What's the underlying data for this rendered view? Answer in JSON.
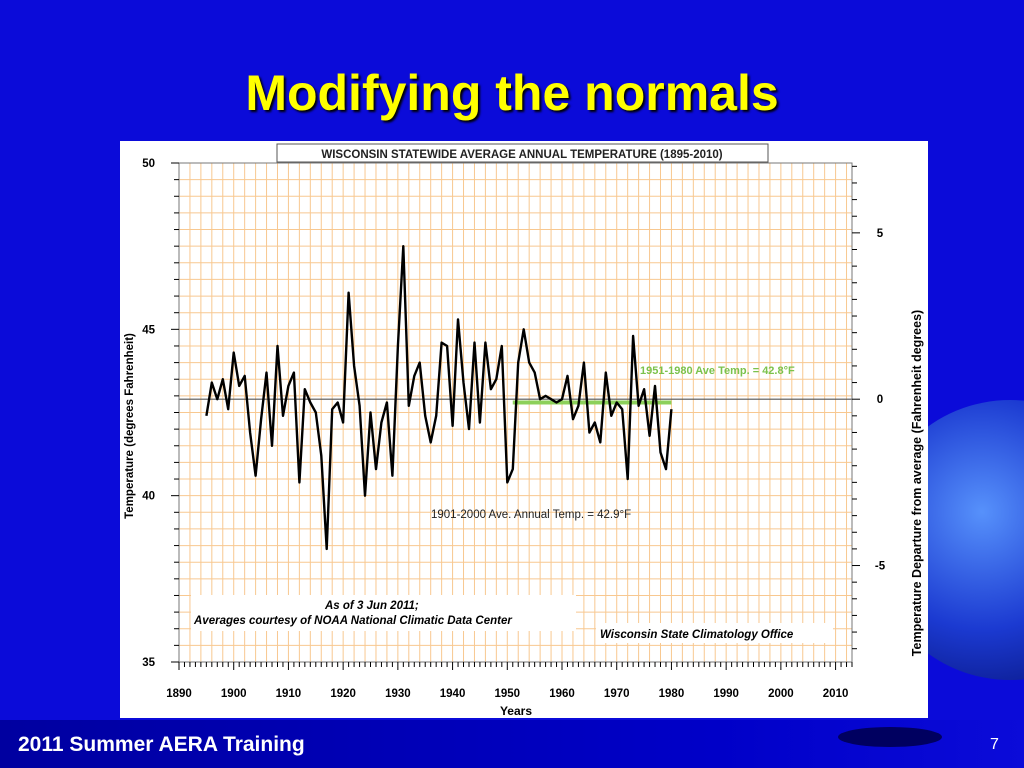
{
  "slide": {
    "title": "Modifying the normals",
    "footer": "2011 Summer AERA Training",
    "page_number": "7"
  },
  "colors": {
    "background": "#0b0bd9",
    "title": "#ffff00",
    "grid": "#f8c890",
    "series_line": "#000000",
    "normal_1951_1980": "#8cd05a",
    "normal_1951_1980_label": "#7bc24c"
  },
  "chart_data": {
    "type": "line",
    "title": "WISCONSIN STATEWIDE AVERAGE  ANNUAL TEMPERATURE (1895-2010)",
    "xlabel": "Years",
    "ylabel": "Temperature  (degrees Fahrenheit)",
    "y2label": "Temperature Departure from average (Fahrenheit degrees)",
    "xlim": [
      1890,
      2013
    ],
    "ylim": [
      35,
      50
    ],
    "y2lim": [
      -7.9,
      7.1
    ],
    "x_ticks": [
      1890,
      1900,
      1910,
      1920,
      1930,
      1940,
      1950,
      1960,
      1970,
      1980,
      1990,
      2000,
      2010
    ],
    "y_ticks": [
      35,
      40,
      45,
      50
    ],
    "y2_ticks": [
      -5,
      0,
      5
    ],
    "grid": true,
    "series": [
      {
        "x": [
          1895,
          1896,
          1897,
          1898,
          1899,
          1900,
          1901,
          1902,
          1903,
          1904,
          1905,
          1906,
          1907,
          1908,
          1909,
          1910,
          1911,
          1912,
          1913,
          1914,
          1915,
          1916,
          1917,
          1918,
          1919,
          1920,
          1921,
          1922,
          1923,
          1924,
          1925,
          1926,
          1927,
          1928,
          1929,
          1930,
          1931,
          1932,
          1933,
          1934,
          1935,
          1936,
          1937,
          1938,
          1939,
          1940,
          1941,
          1942,
          1943,
          1944,
          1945,
          1946,
          1947,
          1948,
          1949,
          1950,
          1951,
          1952,
          1953,
          1954,
          1955,
          1956,
          1957,
          1958,
          1959,
          1960,
          1961,
          1962,
          1963,
          1964,
          1965,
          1966,
          1967,
          1968,
          1969,
          1970,
          1971,
          1972,
          1973,
          1974,
          1975,
          1976,
          1977,
          1978,
          1979,
          1980
        ],
        "values": [
          42.4,
          43.4,
          42.9,
          43.5,
          42.6,
          44.3,
          43.3,
          43.6,
          41.9,
          40.6,
          42.3,
          43.7,
          41.5,
          44.5,
          42.4,
          43.3,
          43.7,
          40.4,
          43.2,
          42.8,
          42.5,
          41.2,
          38.4,
          42.6,
          42.8,
          42.2,
          46.1,
          43.9,
          42.7,
          40,
          42.5,
          40.8,
          42.2,
          42.8,
          40.6,
          44.5,
          47.5,
          42.7,
          43.6,
          44,
          42.4,
          41.6,
          42.4,
          44.6,
          44.5,
          42.1,
          45.3,
          43.4,
          42,
          44.6,
          42.2,
          44.6,
          43.2,
          43.5,
          44.5,
          40.4,
          40.8,
          44,
          45,
          44,
          43.7,
          42.9,
          43,
          42.9,
          42.8,
          42.9,
          43.6,
          42.3,
          42.7,
          44,
          41.9,
          42.2,
          41.6,
          43.7,
          42.4,
          42.8,
          42.6,
          40.5,
          44.8,
          42.7,
          43.2,
          41.8,
          43.3,
          41.3,
          40.8,
          42.6
        ]
      }
    ],
    "reference_lines": [
      {
        "label": "1901-2000 Ave. Annual Temp. = 42.9°F",
        "y": 42.9,
        "x_start": 1890,
        "x_end": 2013
      },
      {
        "label": "1951-1980 Ave Temp. = 42.8°F",
        "y": 42.8,
        "x_start": 1951,
        "x_end": 1980
      }
    ],
    "annotations": {
      "as_of": "As of 3 Jun 2011;",
      "courtesy": "Averages courtesy of NOAA National Climatic Data Center",
      "office": "Wisconsin State Climatology Office"
    }
  }
}
